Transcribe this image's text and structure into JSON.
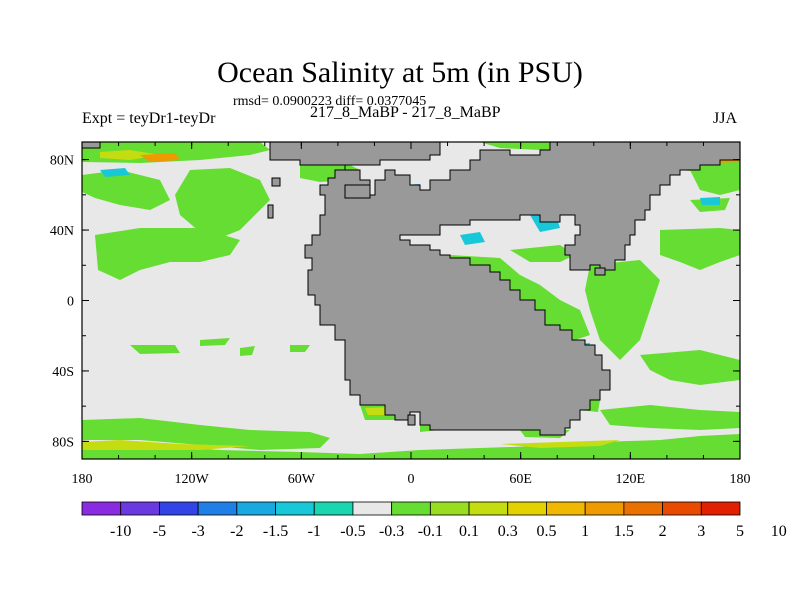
{
  "title": "Ocean Salinity at 5m (in PSU)",
  "stats": "rmsd= 0.0900223 diff= 0.0377045",
  "left_label": "Expt = teyDr1-teyDr",
  "center_label": "217_8_MaBP - 217_8_MaBP",
  "right_label": "JJA",
  "lon_ticks": [
    {
      "v": -180,
      "label": "180"
    },
    {
      "v": -120,
      "label": "120W"
    },
    {
      "v": -60,
      "label": "60W"
    },
    {
      "v": 0,
      "label": "0"
    },
    {
      "v": 60,
      "label": "60E"
    },
    {
      "v": 120,
      "label": "120E"
    },
    {
      "v": 180,
      "label": "180"
    }
  ],
  "lat_ticks": [
    {
      "v": 80,
      "label": "80N"
    },
    {
      "v": 40,
      "label": "40N"
    },
    {
      "v": 0,
      "label": "0"
    },
    {
      "v": -40,
      "label": "40S"
    },
    {
      "v": -80,
      "label": "80S"
    }
  ],
  "colorbar": {
    "colors": [
      "#8a2be2",
      "#6a3ae0",
      "#3344e6",
      "#1f7fe6",
      "#1aa8e0",
      "#18c8d8",
      "#1ad6b0",
      "#e8e8e8",
      "#66dd33",
      "#99dd22",
      "#c4dd11",
      "#e3d200",
      "#f0b800",
      "#ee9a00",
      "#ea7000",
      "#e84a00",
      "#e02000"
    ],
    "labels": [
      "-10",
      "-5",
      "-3",
      "-2",
      "-1.5",
      "-1",
      "-0.5",
      "-0.3",
      "-0.1",
      "0.1",
      "0.3",
      "0.5",
      "1",
      "1.5",
      "2",
      "3",
      "5",
      "10"
    ]
  },
  "colors": {
    "ocean": "#e8e8e8",
    "land": "#999999",
    "green": "#66dd33",
    "cyan": "#18c8d8",
    "yellow": "#c4dd11",
    "orange": "#ee9a00"
  }
}
